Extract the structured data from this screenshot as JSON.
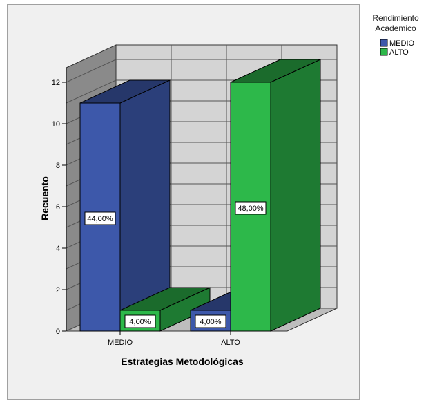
{
  "chart_data": {
    "type": "bar",
    "style": "3d-clustered",
    "title": "",
    "xlabel": "Estrategias Metodológicas",
    "ylabel": "Recuento",
    "categories": [
      "MEDIO",
      "ALTO"
    ],
    "ylim": [
      0,
      12
    ],
    "yticks": [
      0,
      2,
      4,
      6,
      8,
      10,
      12
    ],
    "grid": true,
    "legend": {
      "title": "Rendimiento Academico",
      "placement": "top-right"
    },
    "series": [
      {
        "name": "MEDIO",
        "values": [
          11,
          1
        ],
        "labels": [
          "44,00%",
          "4,00%"
        ],
        "color": "#3d58aa",
        "side_color": "#2b3f7a",
        "top_color": "#26376a"
      },
      {
        "name": "ALTO",
        "values": [
          1,
          12
        ],
        "labels": [
          "4,00%",
          "48,00%"
        ],
        "color": "#2db84a",
        "side_color": "#1e7a32",
        "top_color": "#1b6b2c"
      }
    ]
  }
}
